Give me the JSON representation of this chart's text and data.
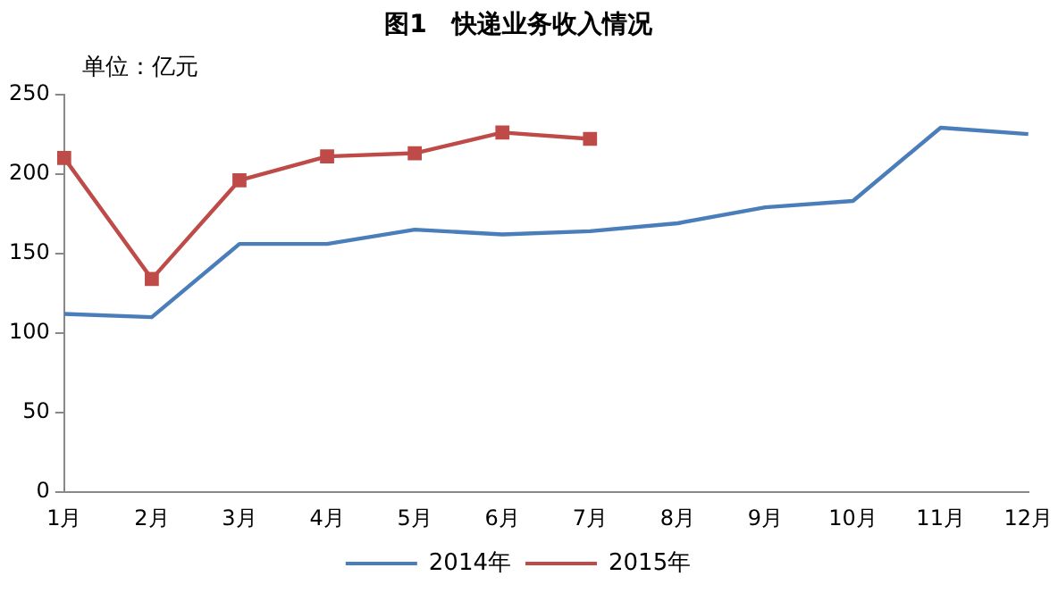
{
  "chart_data": {
    "type": "line",
    "title": "图1　快递业务收入情况",
    "ylabel": "单位：亿元",
    "categories": [
      "1月",
      "2月",
      "3月",
      "4月",
      "5月",
      "6月",
      "7月",
      "8月",
      "9月",
      "10月",
      "11月",
      "12月"
    ],
    "series": [
      {
        "name": "2014年",
        "color": "#4a7ebb",
        "marker": "none",
        "values": [
          112,
          110,
          156,
          156,
          165,
          162,
          164,
          169,
          179,
          183,
          229,
          225
        ]
      },
      {
        "name": "2015年",
        "color": "#be4b48",
        "marker": "square",
        "values": [
          210,
          134,
          196,
          211,
          213,
          226,
          222,
          null,
          null,
          null,
          null,
          null
        ]
      }
    ],
    "ylim": [
      0,
      250
    ],
    "yticks": [
      0,
      50,
      100,
      150,
      200,
      250
    ],
    "grid": false,
    "legend": "bottom",
    "line_style": "solid"
  }
}
